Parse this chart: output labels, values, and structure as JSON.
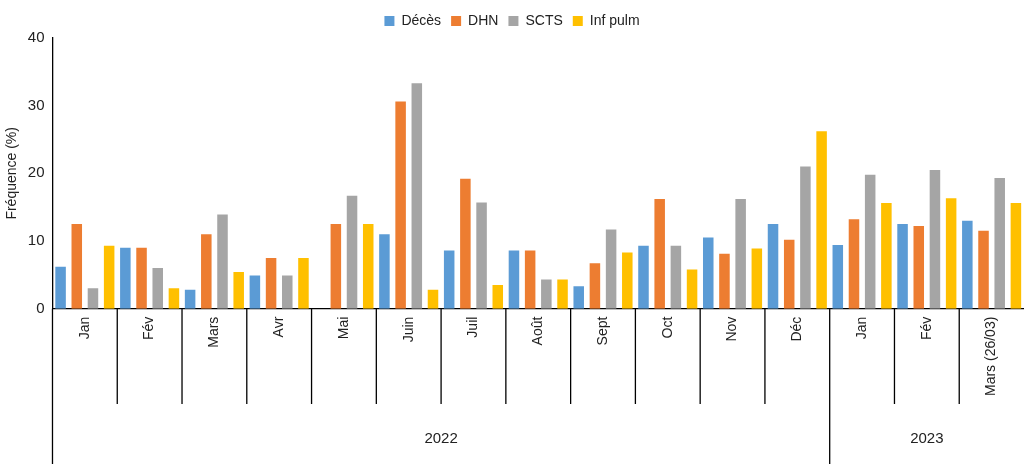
{
  "chart_data": {
    "type": "bar",
    "ylabel": "Fréquence (%)",
    "categories": [
      "Jan",
      "Fév",
      "Mars",
      "Avr",
      "Mai",
      "Juin",
      "Juil",
      "Août",
      "Sept",
      "Oct",
      "Nov",
      "Déc",
      "Jan",
      "Fév",
      "Mars (26/03)"
    ],
    "series": [
      {
        "name": "Décès",
        "color": "#5b9bd5",
        "values": [
          6.2,
          9,
          2.8,
          4.9,
          0,
          11,
          8.6,
          8.6,
          3.3,
          9.3,
          10.5,
          12.5,
          9.4,
          12.5,
          13
        ]
      },
      {
        "name": "DHN",
        "color": "#ed7d31",
        "values": [
          12.5,
          9,
          11,
          7.5,
          12.5,
          30.6,
          19.2,
          8.6,
          6.7,
          16.2,
          8.1,
          10.2,
          13.2,
          12.2,
          11.5
        ]
      },
      {
        "name": "SCTS",
        "color": "#a5a5a5",
        "values": [
          3,
          6,
          13.9,
          4.9,
          16.7,
          33.3,
          15.7,
          4.3,
          11.7,
          9.3,
          16.2,
          21,
          19.8,
          20.5,
          19.3
        ]
      },
      {
        "name": "Inf pulm",
        "color": "#ffc000",
        "values": [
          9.3,
          3,
          5.4,
          7.5,
          12.5,
          2.8,
          3.5,
          4.3,
          8.3,
          5.8,
          8.9,
          26.2,
          15.6,
          16.3,
          15.6
        ]
      }
    ],
    "ylim": [
      0,
      40
    ],
    "yticks": [
      0,
      10,
      20,
      30,
      40
    ],
    "legend": "top",
    "annotations": [
      "2022",
      "2023"
    ]
  }
}
